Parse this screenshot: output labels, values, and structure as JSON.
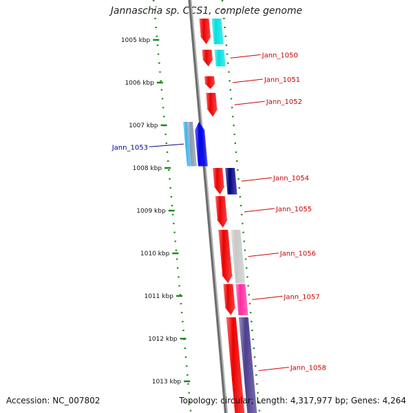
{
  "title": "Jannaschia sp. CCS1, complete genome",
  "footer": {
    "accession_label": "Accession:",
    "accession": "NC_007802",
    "topology_label": "Topology:",
    "topology": "circular",
    "length_label": "Length:",
    "length": "4,317,977 bp",
    "genes_label": "Genes:",
    "genes": "4,264"
  },
  "colors": {
    "backbone": "#8a8a8a",
    "tick": "#1a8a1a",
    "forward_label": "#cc0000",
    "reverse_label": "#00008b",
    "cds": "#ee0000",
    "cyan": "#00e0e0",
    "light_blue": "#3fb5ee",
    "steel": "#8a9aae",
    "blue": "#0000ee",
    "navy": "#000080",
    "grey": "#c8c8c8",
    "magenta": "#ff2aa0",
    "purple": "#4b3d8f"
  },
  "ticks": [
    {
      "label": "1005 kbp",
      "kbp": 1005
    },
    {
      "label": "1006 kbp",
      "kbp": 1006
    },
    {
      "label": "1007 kbp",
      "kbp": 1007
    },
    {
      "label": "1008 kbp",
      "kbp": 1008
    },
    {
      "label": "1009 kbp",
      "kbp": 1009
    },
    {
      "label": "1010 kbp",
      "kbp": 1010
    },
    {
      "label": "1011 kbp",
      "kbp": 1011
    },
    {
      "label": "1012 kbp",
      "kbp": 1012
    },
    {
      "label": "1013 kbp",
      "kbp": 1013
    }
  ],
  "genes": [
    {
      "id": "top-cds",
      "label": "",
      "strand": "+",
      "start_kbp": 1004.5,
      "end_kbp": 1005.1,
      "color": "cds",
      "arrow": true
    },
    {
      "id": "Jann_1050",
      "label": "Jann_1050",
      "strand": "+",
      "start_kbp": 1005.23,
      "end_kbp": 1005.62,
      "color": "cds",
      "arrow": true
    },
    {
      "id": "Jann_1051",
      "label": "Jann_1051",
      "strand": "+",
      "start_kbp": 1005.85,
      "end_kbp": 1006.15,
      "color": "cds",
      "arrow": true
    },
    {
      "id": "Jann_1052",
      "label": "Jann_1052",
      "strand": "+",
      "start_kbp": 1006.24,
      "end_kbp": 1006.8,
      "color": "cds",
      "arrow": true
    },
    {
      "id": "Jann_1053",
      "label": "Jann_1053",
      "strand": "-",
      "start_kbp": 1006.92,
      "end_kbp": 1007.96,
      "color": "blue",
      "arrow": true
    },
    {
      "id": "Jann_1054",
      "label": "Jann_1054",
      "strand": "+",
      "start_kbp": 1008.0,
      "end_kbp": 1008.62,
      "color": "cds",
      "arrow": true
    },
    {
      "id": "Jann_1055",
      "label": "Jann_1055",
      "strand": "+",
      "start_kbp": 1008.66,
      "end_kbp": 1009.4,
      "color": "cds",
      "arrow": true
    },
    {
      "id": "Jann_1056",
      "label": "Jann_1056",
      "strand": "+",
      "start_kbp": 1009.45,
      "end_kbp": 1010.7,
      "color": "cds",
      "arrow": true
    },
    {
      "id": "Jann_1057",
      "label": "Jann_1057",
      "strand": "+",
      "start_kbp": 1010.72,
      "end_kbp": 1011.45,
      "color": "cds",
      "arrow": true
    },
    {
      "id": "Jann_1058",
      "label": "Jann_1058",
      "strand": "+",
      "start_kbp": 1011.5,
      "end_kbp": 1014.0,
      "color": "cds",
      "arrow": false
    }
  ],
  "cog_bars": [
    {
      "strand": "+",
      "start_kbp": 1004.5,
      "end_kbp": 1005.1,
      "color": "cyan"
    },
    {
      "strand": "+",
      "start_kbp": 1005.23,
      "end_kbp": 1005.62,
      "color": "cyan"
    },
    {
      "strand": "+",
      "start_kbp": 1008.0,
      "end_kbp": 1008.62,
      "color": "navy"
    },
    {
      "strand": "+",
      "start_kbp": 1009.45,
      "end_kbp": 1010.7,
      "color": "grey"
    },
    {
      "strand": "+",
      "start_kbp": 1010.72,
      "end_kbp": 1011.45,
      "color": "magenta"
    },
    {
      "strand": "+",
      "start_kbp": 1011.5,
      "end_kbp": 1014.0,
      "color": "purple"
    },
    {
      "strand": "-",
      "start_kbp": 1006.92,
      "end_kbp": 1007.96,
      "color": "light_blue"
    },
    {
      "strand": "-",
      "start_kbp": 1006.92,
      "end_kbp": 1007.96,
      "color": "steel"
    }
  ]
}
